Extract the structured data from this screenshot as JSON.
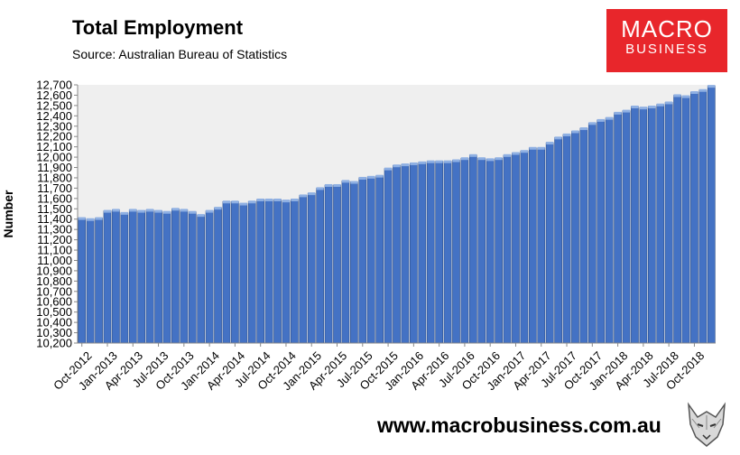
{
  "header": {
    "title": "Total Employment",
    "source": "Source: Australian Bureau of Statistics"
  },
  "logo": {
    "line1": "MACRO",
    "line2": "BUSINESS"
  },
  "footer": {
    "url": "www.macrobusiness.com.au"
  },
  "colors": {
    "bar": "#4472c4",
    "plot_bg": "#efefef",
    "logo_bg": "#e8262b"
  },
  "chart_data": {
    "type": "bar",
    "ylabel": "Number",
    "ylim": [
      10200,
      12700
    ],
    "y_ticks": [
      10200,
      10300,
      10400,
      10500,
      10600,
      10700,
      10800,
      10900,
      11000,
      11100,
      11200,
      11300,
      11400,
      11500,
      11600,
      11700,
      11800,
      11900,
      12000,
      12100,
      12200,
      12300,
      12400,
      12500,
      12600,
      12700
    ],
    "y_tick_labels": [
      "10,200",
      "10,300",
      "10,400",
      "10,500",
      "10,600",
      "10,700",
      "10,800",
      "10,900",
      "11,000",
      "11,100",
      "11,200",
      "11,300",
      "11,400",
      "11,500",
      "11,600",
      "11,700",
      "11,800",
      "11,900",
      "12,000",
      "12,100",
      "12,200",
      "12,300",
      "12,400",
      "12,500",
      "12,600",
      "12,700"
    ],
    "x_tick_labels": [
      "Oct-2012",
      "Jan-2013",
      "Apr-2013",
      "Jul-2013",
      "Oct-2013",
      "Jan-2014",
      "Apr-2014",
      "Jul-2014",
      "Oct-2014",
      "Jan-2015",
      "Apr-2015",
      "Jul-2015",
      "Oct-2015",
      "Jan-2016",
      "Apr-2016",
      "Jul-2016",
      "Oct-2016",
      "Jan-2017",
      "Apr-2017",
      "Jul-2017",
      "Oct-2017",
      "Jan-2018",
      "Apr-2018",
      "Jul-2018",
      "Oct-2018"
    ],
    "tick_every": 3,
    "values": [
      11410,
      11400,
      11410,
      11480,
      11490,
      11460,
      11490,
      11480,
      11490,
      11480,
      11470,
      11500,
      11490,
      11470,
      11440,
      11480,
      11510,
      11570,
      11570,
      11550,
      11570,
      11590,
      11590,
      11590,
      11580,
      11590,
      11630,
      11650,
      11700,
      11730,
      11730,
      11770,
      11760,
      11800,
      11810,
      11820,
      11890,
      11920,
      11930,
      11940,
      11950,
      11960,
      11960,
      11960,
      11970,
      11990,
      12020,
      11990,
      11980,
      11990,
      12020,
      12040,
      12060,
      12090,
      12090,
      12140,
      12190,
      12220,
      12250,
      12280,
      12330,
      12360,
      12380,
      12430,
      12450,
      12490,
      12480,
      12490,
      12510,
      12530,
      12600,
      12590,
      12630,
      12650,
      12690
    ]
  }
}
